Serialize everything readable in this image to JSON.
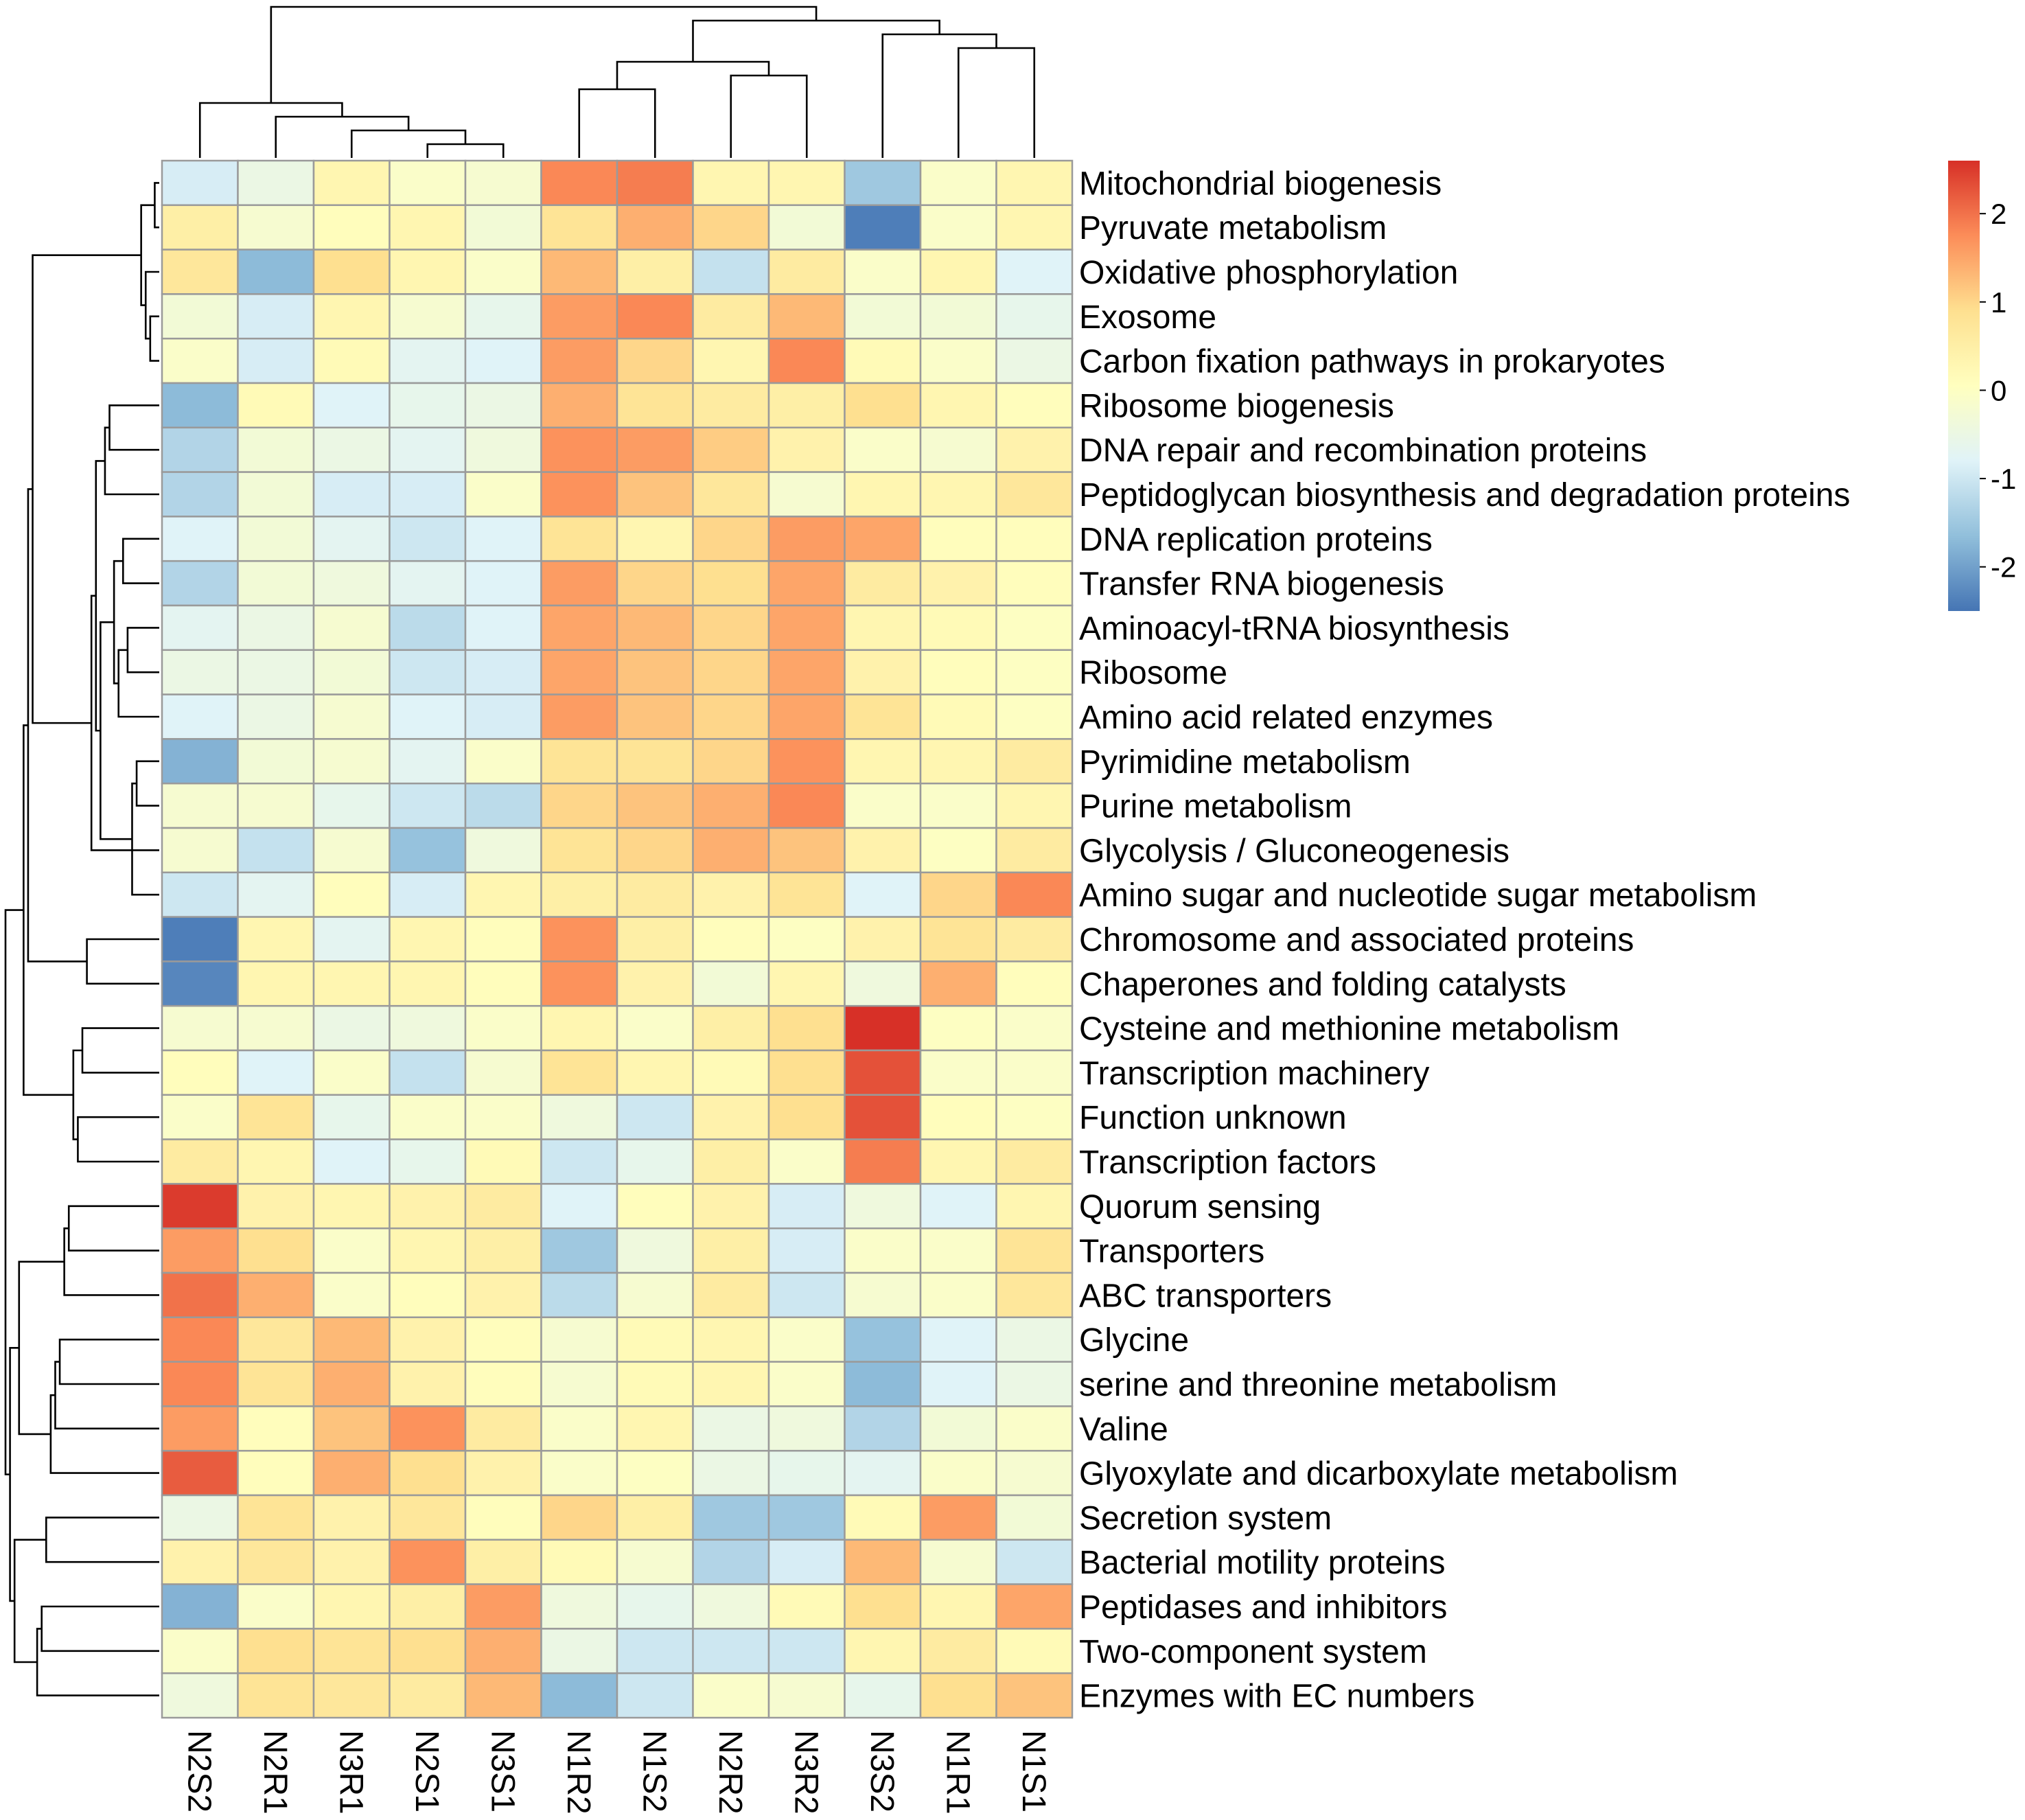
{
  "chart_data": {
    "type": "heatmap",
    "title": "",
    "columns": [
      "N2S2",
      "N2R1",
      "N3R1",
      "N2S1",
      "N3S1",
      "N1R2",
      "N1S2",
      "N2R2",
      "N3R2",
      "N3S2",
      "N1R1",
      "N1S1"
    ],
    "rows": [
      "Mitochondrial biogenesis",
      "Pyruvate metabolism",
      "Oxidative phosphorylation",
      "Exosome",
      "Carbon fixation pathways in prokaryotes",
      "Ribosome biogenesis",
      "DNA repair and recombination proteins",
      "Peptidoglycan biosynthesis and degradation proteins",
      "DNA replication proteins",
      "Transfer RNA biogenesis",
      "Aminoacyl-tRNA biosynthesis",
      "Ribosome",
      "Amino acid related enzymes",
      "Pyrimidine metabolism",
      "Purine metabolism",
      "Glycolysis / Gluconeogenesis",
      "Amino sugar and nucleotide sugar metabolism",
      "Chromosome and associated proteins",
      "Chaperones and folding catalysts",
      "Cysteine and methionine metabolism",
      "Transcription machinery",
      "Function unknown",
      "Transcription factors",
      "Quorum sensing",
      "Transporters",
      "ABC transporters",
      "Glycine",
      "serine and threonine metabolism",
      "Valine",
      "Glyoxylate and dicarboxylate metabolism",
      "Secretion system",
      "Bacterial motility proteins",
      "Peptidases and inhibitors",
      "Two-component system",
      "Enzymes with EC numbers"
    ],
    "values": [
      [
        -0.9,
        -0.5,
        0.3,
        -0.1,
        -0.2,
        1.8,
        1.9,
        0.3,
        0.3,
        -1.5,
        -0.1,
        0.3
      ],
      [
        0.5,
        -0.2,
        0.1,
        0.3,
        -0.3,
        0.8,
        1.4,
        1.0,
        -0.3,
        -2.4,
        -0.1,
        0.3
      ],
      [
        0.7,
        -1.7,
        0.9,
        0.3,
        -0.1,
        1.3,
        0.5,
        -1.1,
        0.6,
        -0.1,
        0.3,
        -0.8
      ],
      [
        -0.3,
        -0.9,
        0.3,
        -0.2,
        -0.6,
        1.6,
        1.8,
        0.6,
        1.3,
        -0.3,
        -0.3,
        -0.6
      ],
      [
        -0.1,
        -0.9,
        0.2,
        -0.7,
        -0.8,
        1.6,
        1.0,
        0.3,
        1.8,
        0.2,
        -0.1,
        -0.5
      ],
      [
        -1.7,
        0.2,
        -0.8,
        -0.6,
        -0.5,
        1.4,
        0.8,
        0.6,
        0.5,
        0.9,
        0.3,
        0.1
      ],
      [
        -1.3,
        -0.3,
        -0.5,
        -0.7,
        -0.4,
        1.7,
        1.6,
        1.1,
        0.4,
        -0.1,
        -0.2,
        0.4
      ],
      [
        -1.3,
        -0.3,
        -0.9,
        -0.9,
        -0.1,
        1.7,
        1.2,
        0.7,
        -0.2,
        0.3,
        0.3,
        0.7
      ],
      [
        -0.8,
        -0.3,
        -0.7,
        -1.0,
        -0.8,
        0.8,
        0.3,
        1.0,
        1.6,
        1.5,
        0.1,
        0.1
      ],
      [
        -1.3,
        -0.3,
        -0.4,
        -0.7,
        -0.8,
        1.6,
        1.0,
        0.9,
        1.5,
        0.6,
        0.4,
        0.1
      ],
      [
        -0.7,
        -0.5,
        -0.2,
        -1.2,
        -0.8,
        1.5,
        1.3,
        1.0,
        1.5,
        0.3,
        0.2,
        0.0
      ],
      [
        -0.5,
        -0.5,
        -0.3,
        -1.0,
        -0.9,
        1.5,
        1.2,
        1.0,
        1.5,
        0.4,
        0.1,
        0.0
      ],
      [
        -0.8,
        -0.5,
        -0.2,
        -0.8,
        -0.9,
        1.6,
        1.2,
        1.0,
        1.5,
        0.8,
        0.2,
        0.0
      ],
      [
        -1.8,
        -0.3,
        -0.2,
        -0.7,
        -0.1,
        0.8,
        0.8,
        1.0,
        1.7,
        0.3,
        0.3,
        0.6
      ],
      [
        -0.2,
        -0.2,
        -0.6,
        -1.0,
        -1.2,
        1.0,
        1.2,
        1.4,
        1.8,
        -0.1,
        -0.1,
        0.3
      ],
      [
        -0.2,
        -1.1,
        -0.2,
        -1.6,
        -0.4,
        0.8,
        1.0,
        1.4,
        1.2,
        0.4,
        0.0,
        0.6
      ],
      [
        -1.0,
        -0.7,
        0.1,
        -0.9,
        0.3,
        0.5,
        0.6,
        0.4,
        0.8,
        -0.8,
        1.0,
        1.8
      ],
      [
        -2.4,
        0.3,
        -0.7,
        0.3,
        0.1,
        1.7,
        0.5,
        0.1,
        0.0,
        0.4,
        0.8,
        0.6
      ],
      [
        -2.3,
        0.3,
        0.3,
        0.3,
        0.1,
        1.7,
        0.4,
        -0.3,
        0.3,
        -0.4,
        1.4,
        0.1
      ],
      [
        -0.2,
        -0.2,
        -0.5,
        -0.4,
        -0.1,
        0.3,
        -0.1,
        0.5,
        0.9,
        2.6,
        0.0,
        -0.1
      ],
      [
        0.1,
        -0.8,
        -0.1,
        -1.1,
        -0.2,
        0.8,
        0.3,
        0.2,
        0.9,
        2.3,
        -0.1,
        -0.1
      ],
      [
        -0.1,
        0.8,
        -0.6,
        -0.1,
        -0.1,
        -0.4,
        -1.0,
        0.4,
        0.9,
        2.3,
        0.1,
        0.0
      ],
      [
        0.6,
        0.3,
        -0.8,
        -0.6,
        0.2,
        -1.0,
        -0.6,
        0.5,
        -0.1,
        1.9,
        0.3,
        0.6
      ],
      [
        2.5,
        0.4,
        0.3,
        0.4,
        0.6,
        -0.8,
        0.1,
        0.4,
        -0.9,
        -0.4,
        -0.8,
        0.3
      ],
      [
        1.6,
        0.9,
        -0.1,
        0.3,
        0.5,
        -1.5,
        -0.4,
        0.5,
        -0.9,
        -0.1,
        -0.1,
        0.8
      ],
      [
        2.0,
        1.4,
        -0.1,
        0.1,
        0.4,
        -1.2,
        -0.2,
        0.6,
        -1.0,
        -0.2,
        -0.1,
        0.7
      ],
      [
        1.8,
        0.7,
        1.3,
        0.4,
        0.1,
        -0.2,
        0.2,
        0.3,
        -0.1,
        -1.6,
        -0.8,
        -0.5
      ],
      [
        1.8,
        0.8,
        1.4,
        0.4,
        0.1,
        -0.2,
        0.2,
        0.3,
        -0.1,
        -1.7,
        -0.8,
        -0.5
      ],
      [
        1.6,
        0.1,
        1.2,
        1.7,
        0.6,
        -0.1,
        0.3,
        -0.5,
        -0.4,
        -1.3,
        -0.3,
        -0.1
      ],
      [
        2.2,
        0.1,
        1.4,
        0.9,
        0.4,
        -0.1,
        0.0,
        -0.5,
        -0.6,
        -0.7,
        -0.1,
        -0.2
      ],
      [
        -0.5,
        0.8,
        0.4,
        0.7,
        0.1,
        1.0,
        0.5,
        -1.5,
        -1.5,
        0.2,
        1.6,
        -0.3
      ],
      [
        0.4,
        0.7,
        0.4,
        1.7,
        0.5,
        0.2,
        -0.2,
        -1.3,
        -0.9,
        1.3,
        -0.2,
        -1.0
      ],
      [
        -1.8,
        -0.1,
        0.3,
        0.5,
        1.6,
        -0.4,
        -0.6,
        -0.4,
        0.2,
        0.9,
        0.3,
        1.5
      ],
      [
        -0.1,
        0.9,
        0.8,
        0.9,
        1.4,
        -0.5,
        -1.0,
        -1.0,
        -1.0,
        0.3,
        0.6,
        0.2
      ],
      [
        -0.4,
        0.8,
        0.7,
        0.6,
        1.3,
        -1.7,
        -1.0,
        -0.1,
        -0.2,
        -0.6,
        0.9,
        1.2
      ]
    ],
    "color_scale": {
      "min": -2.5,
      "max": 2.6,
      "stops": [
        "#4575b4",
        "#91bfdb",
        "#e0f3f8",
        "#ffffbf",
        "#fee090",
        "#fc8d59",
        "#d73027"
      ],
      "ticks": [
        2,
        1,
        0,
        -1,
        -2
      ],
      "tick_labels": [
        "2",
        "1",
        "0",
        "-1",
        "-2"
      ]
    },
    "row_dendrogram": [
      [
        0,
        1
      ],
      [
        3,
        4
      ],
      [
        2,
        36
      ],
      [
        35,
        37
      ],
      [
        13,
        14
      ],
      [
        16,
        39
      ],
      [
        10,
        11
      ],
      [
        8,
        9
      ],
      [
        12,
        41
      ],
      [
        42,
        43
      ],
      [
        5,
        6
      ],
      [
        45,
        7
      ],
      [
        40,
        44
      ],
      [
        46,
        47
      ],
      [
        15,
        48
      ],
      [
        17,
        18
      ],
      [
        19,
        20
      ],
      [
        21,
        22
      ],
      [
        51,
        52
      ],
      [
        23,
        24
      ],
      [
        54,
        25
      ],
      [
        26,
        27
      ],
      [
        56,
        28
      ],
      [
        57,
        29
      ],
      [
        30,
        31
      ],
      [
        32,
        33
      ],
      [
        60,
        34
      ],
      [
        38,
        49
      ],
      [
        62,
        50
      ],
      [
        63,
        53
      ],
      [
        55,
        58
      ],
      [
        61,
        59
      ],
      [
        65,
        66
      ],
      [
        64,
        67
      ]
    ],
    "col_dendrogram": [
      [
        3,
        4
      ],
      [
        2,
        12
      ],
      [
        1,
        13
      ],
      [
        0,
        14
      ],
      [
        5,
        6
      ],
      [
        7,
        8
      ],
      [
        16,
        17
      ],
      [
        10,
        11
      ],
      [
        9,
        19
      ],
      [
        18,
        20
      ],
      [
        15,
        21
      ]
    ]
  }
}
